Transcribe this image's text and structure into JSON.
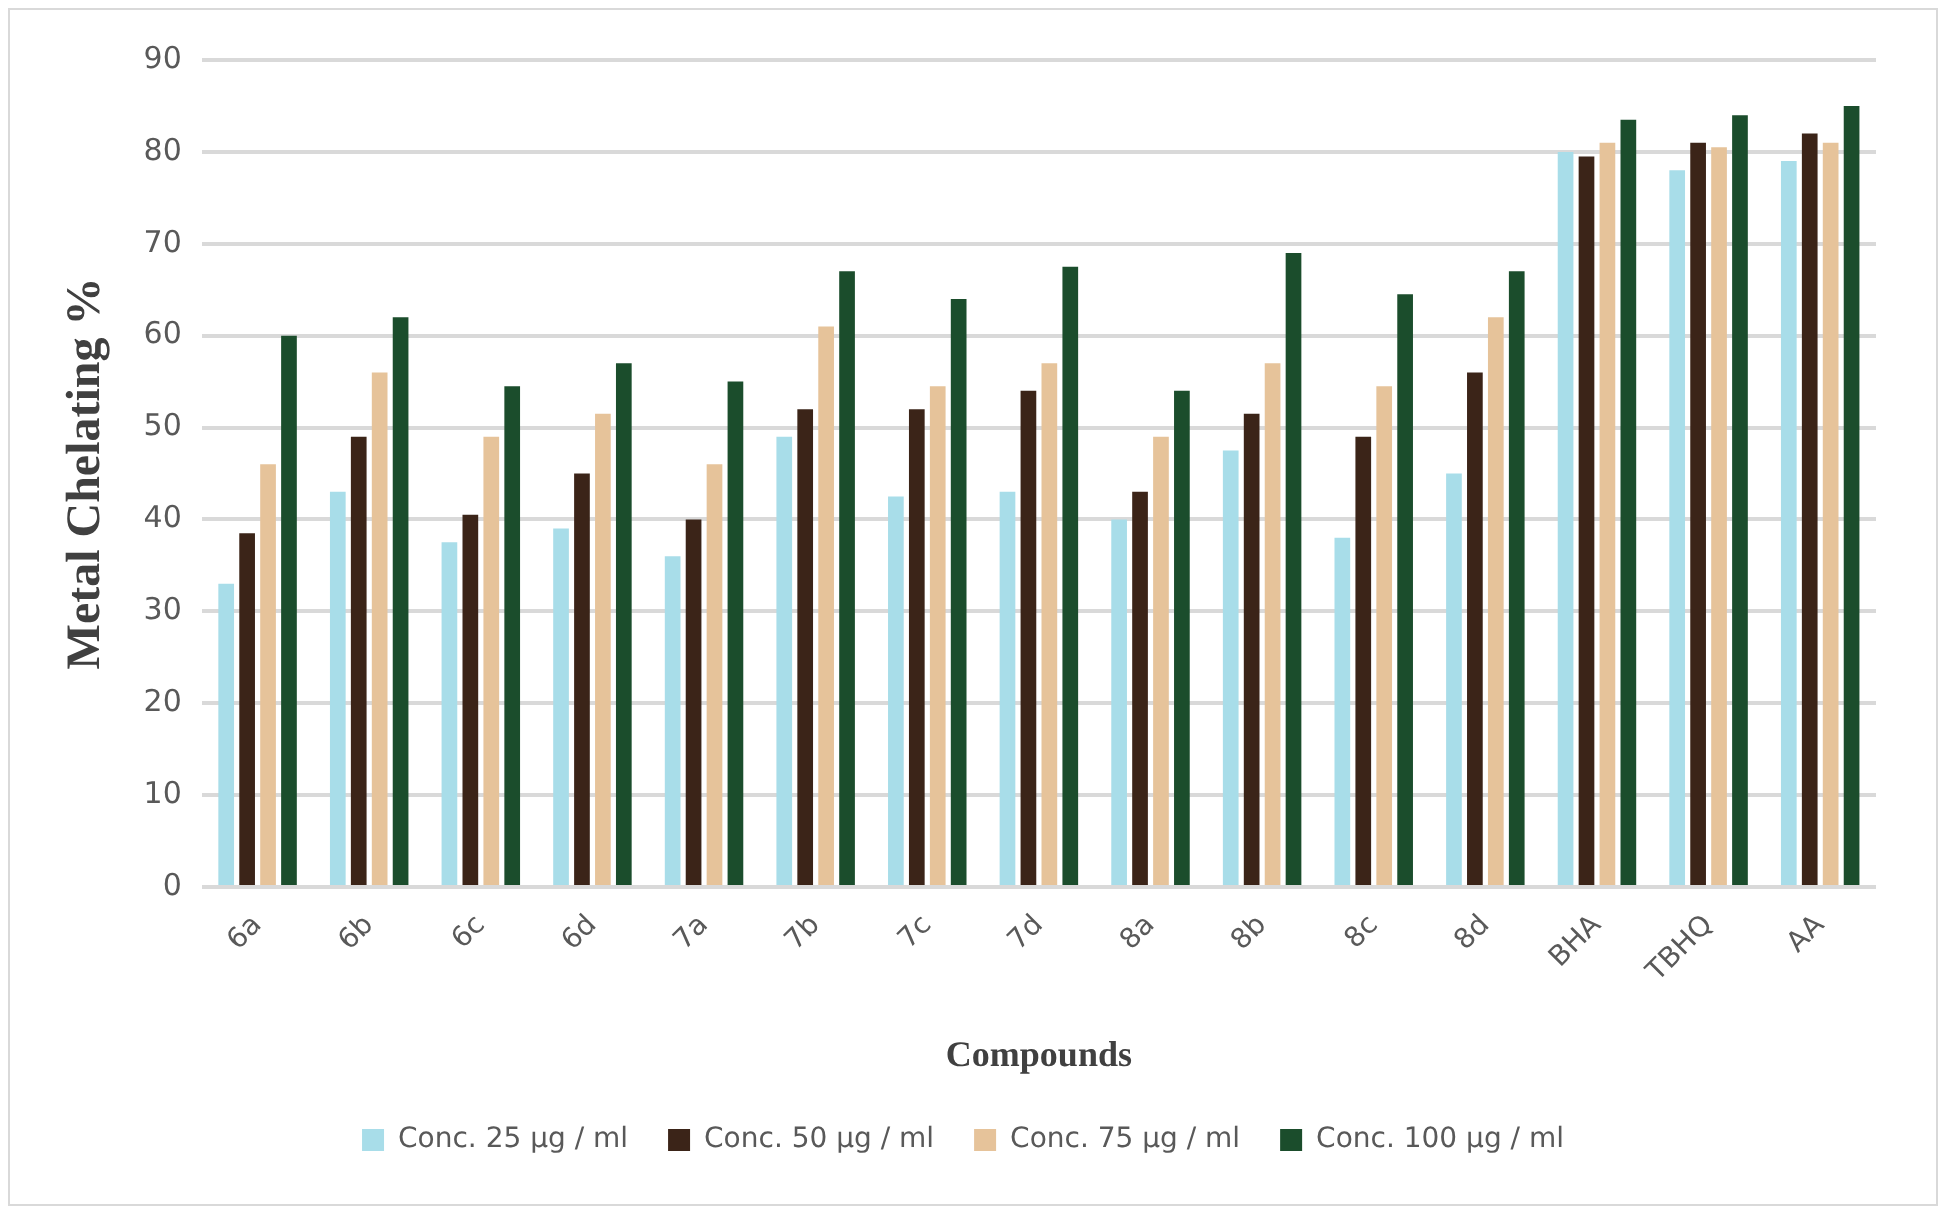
{
  "chart_data": {
    "type": "bar",
    "xlabel": "Compounds",
    "ylabel": "Metal Chelating %",
    "categories": [
      "6a",
      "6b",
      "6c",
      "6d",
      "7a",
      "7b",
      "7c",
      "7d",
      "8a",
      "8b",
      "8c",
      "8d",
      "BHA",
      "TBHQ",
      "AA"
    ],
    "series": [
      {
        "name": "Conc. 25 µg / ml",
        "color": "#a8dde9",
        "values": [
          33,
          43,
          37.5,
          39,
          36,
          49,
          42.5,
          43,
          40,
          47.5,
          38,
          45,
          80,
          78,
          79
        ]
      },
      {
        "name": "Conc. 50 µg / ml",
        "color": "#3b2418",
        "values": [
          38.5,
          49,
          40.5,
          45,
          40,
          52,
          52,
          54,
          43,
          51.5,
          49,
          56,
          79.5,
          81,
          82
        ]
      },
      {
        "name": "Conc. 75 µg / ml",
        "color": "#e6c39a",
        "values": [
          46,
          56,
          49,
          51.5,
          46,
          61,
          54.5,
          57,
          49,
          57,
          54.5,
          62,
          81,
          80.5,
          81
        ]
      },
      {
        "name": "Conc. 100 µg / ml",
        "color": "#1b4d2c",
        "values": [
          60,
          62,
          54.5,
          57,
          55,
          67,
          64,
          67.5,
          54,
          69,
          64.5,
          67,
          83.5,
          84,
          85
        ]
      }
    ],
    "ylim": [
      0,
      90
    ],
    "yticks": [
      0,
      10,
      20,
      30,
      40,
      50,
      60,
      70,
      80,
      90
    ],
    "grid": "y",
    "legend": "bottom"
  }
}
